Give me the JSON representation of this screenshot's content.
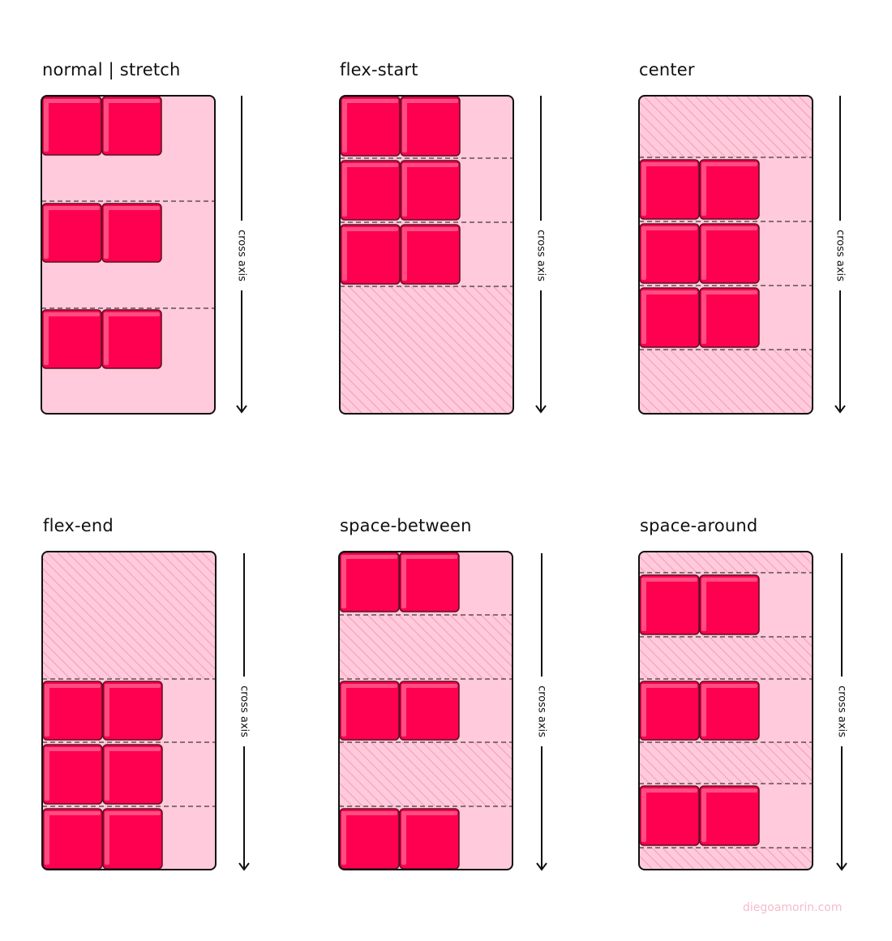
{
  "axis_label": "cross axis",
  "watermark": "diegoamorin.com",
  "colors": {
    "container_fill": "#ffcadb",
    "item_fill": "#ff0050",
    "item_highlight": "#ff4d82",
    "item_border": "#5a1020",
    "hatch": "#f59ab8",
    "outline": "#111111"
  },
  "panels": [
    {
      "id": "stretch",
      "title": "normal | stretch",
      "lines": 3,
      "items_per_line": 2
    },
    {
      "id": "flex-start",
      "title": "flex-start",
      "lines": 3,
      "items_per_line": 2
    },
    {
      "id": "center",
      "title": "center",
      "lines": 3,
      "items_per_line": 2
    },
    {
      "id": "flex-end",
      "title": "flex-end",
      "lines": 3,
      "items_per_line": 2
    },
    {
      "id": "space-between",
      "title": "space-between",
      "lines": 3,
      "items_per_line": 2
    },
    {
      "id": "space-around",
      "title": "space-around",
      "lines": 3,
      "items_per_line": 2
    }
  ]
}
